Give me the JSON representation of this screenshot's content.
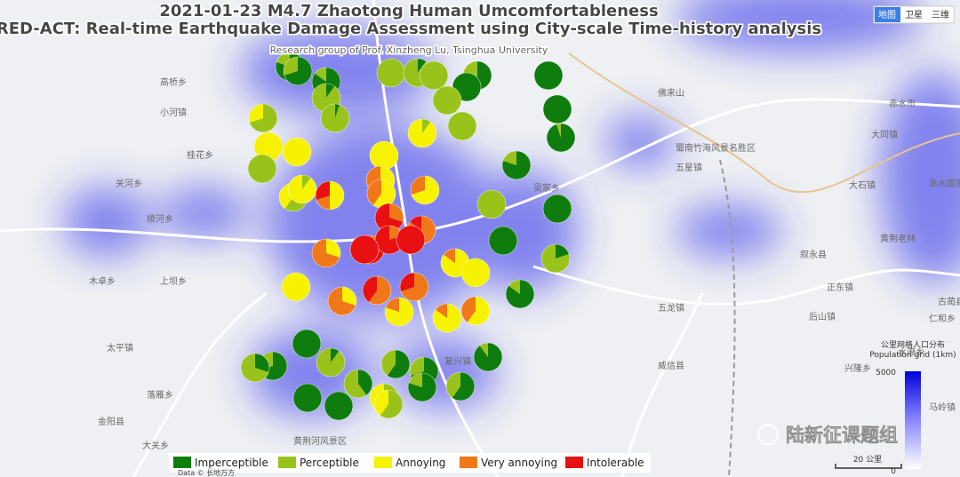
{
  "title": "2021-01-23 M4.7 Zhaotong Human Umcomfortableness",
  "subtitle": "RED-ACT: Real-time Earthquake Damage Assessment using City-scale Time-history analysis",
  "credit": "Research group of Prof. Xinzheng Lu, Tsinghua University",
  "map_buttons": [
    "地图",
    "卫星",
    "三维"
  ],
  "legend": [
    {
      "name": "Imperceptible",
      "color": "#0e7d0e"
    },
    {
      "name": "Perceptible",
      "color": "#99c31a"
    },
    {
      "name": "Annoying",
      "color": "#f7f200"
    },
    {
      "name": "Very annoying",
      "color": "#f07818"
    },
    {
      "name": "Intolerable",
      "color": "#e81010"
    }
  ],
  "pies": [
    [
      80,
      20,
      0,
      0,
      0
    ],
    [
      70,
      30,
      0,
      0,
      0
    ],
    [
      85,
      15,
      0,
      0,
      0
    ],
    [
      10,
      90,
      0,
      0,
      0
    ],
    [
      5,
      95,
      0,
      0,
      0
    ],
    [
      0,
      70,
      30,
      0,
      0
    ],
    [
      0,
      100,
      0,
      0,
      0
    ],
    [
      10,
      90,
      0,
      0,
      0
    ],
    [
      0,
      100,
      0,
      0,
      0
    ],
    [
      60,
      40,
      0,
      0,
      0
    ],
    [
      100,
      0,
      0,
      0,
      0
    ],
    [
      100,
      0,
      0,
      0,
      0
    ],
    [
      100,
      0,
      0,
      0,
      0
    ],
    [
      95,
      5,
      0,
      0,
      0
    ],
    [
      0,
      100,
      0,
      0,
      0
    ],
    [
      0,
      100,
      0,
      0,
      0
    ],
    [
      0,
      10,
      90,
      0,
      0
    ],
    [
      0,
      0,
      100,
      0,
      0
    ],
    [
      0,
      0,
      100,
      0,
      0
    ],
    [
      0,
      100,
      0,
      0,
      0
    ],
    [
      0,
      0,
      100,
      0,
      0
    ],
    [
      80,
      20,
      0,
      0,
      0
    ],
    [
      0,
      60,
      40,
      0,
      0
    ],
    [
      0,
      10,
      90,
      0,
      0
    ],
    [
      0,
      0,
      50,
      20,
      30
    ],
    [
      0,
      0,
      40,
      60,
      0
    ],
    [
      0,
      0,
      60,
      40,
      0
    ],
    [
      0,
      0,
      70,
      30,
      0
    ],
    [
      0,
      100,
      0,
      0,
      0
    ],
    [
      100,
      0,
      0,
      0,
      0
    ],
    [
      0,
      0,
      0,
      30,
      70
    ],
    [
      0,
      0,
      0,
      85,
      15
    ],
    [
      100,
      0,
      0,
      0,
      0
    ],
    [
      20,
      80,
      0,
      0,
      0
    ],
    [
      0,
      0,
      30,
      70,
      0
    ],
    [
      0,
      0,
      0,
      10,
      90
    ],
    [
      0,
      0,
      0,
      20,
      80
    ],
    [
      0,
      0,
      0,
      0,
      100
    ],
    [
      0,
      0,
      0,
      0,
      100
    ],
    [
      0,
      0,
      85,
      15,
      0
    ],
    [
      0,
      0,
      100,
      0,
      0
    ],
    [
      0,
      0,
      100,
      0,
      0
    ],
    [
      0,
      0,
      30,
      70,
      0
    ],
    [
      0,
      0,
      0,
      60,
      40
    ],
    [
      0,
      0,
      0,
      70,
      30
    ],
    [
      0,
      0,
      80,
      20,
      0
    ],
    [
      0,
      0,
      85,
      15,
      0
    ],
    [
      0,
      0,
      60,
      40,
      0
    ],
    [
      85,
      15,
      0,
      0,
      0
    ],
    [
      100,
      0,
      0,
      0,
      0
    ],
    [
      90,
      10,
      0,
      0,
      0
    ],
    [
      70,
      30,
      0,
      0,
      0
    ],
    [
      30,
      70,
      0,
      0,
      0
    ],
    [
      10,
      90,
      0,
      0,
      0
    ],
    [
      40,
      60,
      0,
      0,
      0
    ],
    [
      60,
      40,
      0,
      0,
      0
    ],
    [
      70,
      30,
      0,
      0,
      0
    ],
    [
      80,
      20,
      0,
      0,
      0
    ],
    [
      60,
      40,
      0,
      0,
      0
    ],
    [
      100,
      0,
      0,
      0,
      0
    ],
    [
      100,
      0,
      0,
      0,
      0
    ],
    [
      0,
      30,
      70,
      0,
      0
    ],
    [
      0,
      60,
      40,
      0,
      0
    ]
  ],
  "place_labels": [
    "高桥乡",
    "小河镇",
    "赤水市",
    "大同镇",
    "赤水国家级风景名胜区",
    "黄荆老林",
    "大石镇",
    "古蔺县",
    "仁和乡",
    "正东镇",
    "叙永县",
    "水潦乡",
    "马岭镇",
    "兴隆乡",
    "黄荆河风景区",
    "金阳县",
    "大关乡",
    "落雁乡",
    "吴家乡",
    "复兴镇",
    "威信县",
    "后山镇",
    "五龙镇",
    "太平镇",
    "佛来山",
    "蜀南竹海风景名胜区",
    "五星镇",
    "顺河乡",
    "上坝乡",
    "木卓乡",
    "桂花乡",
    "关河乡"
  ],
  "population_legend": {
    "title_cn": "公里网格人口分布",
    "title": "Population grid (1km)",
    "max": 5000,
    "min": 0
  },
  "scale": "20 公里",
  "watermark": "陆新征课题组",
  "footer": "Data © 长地万方"
}
